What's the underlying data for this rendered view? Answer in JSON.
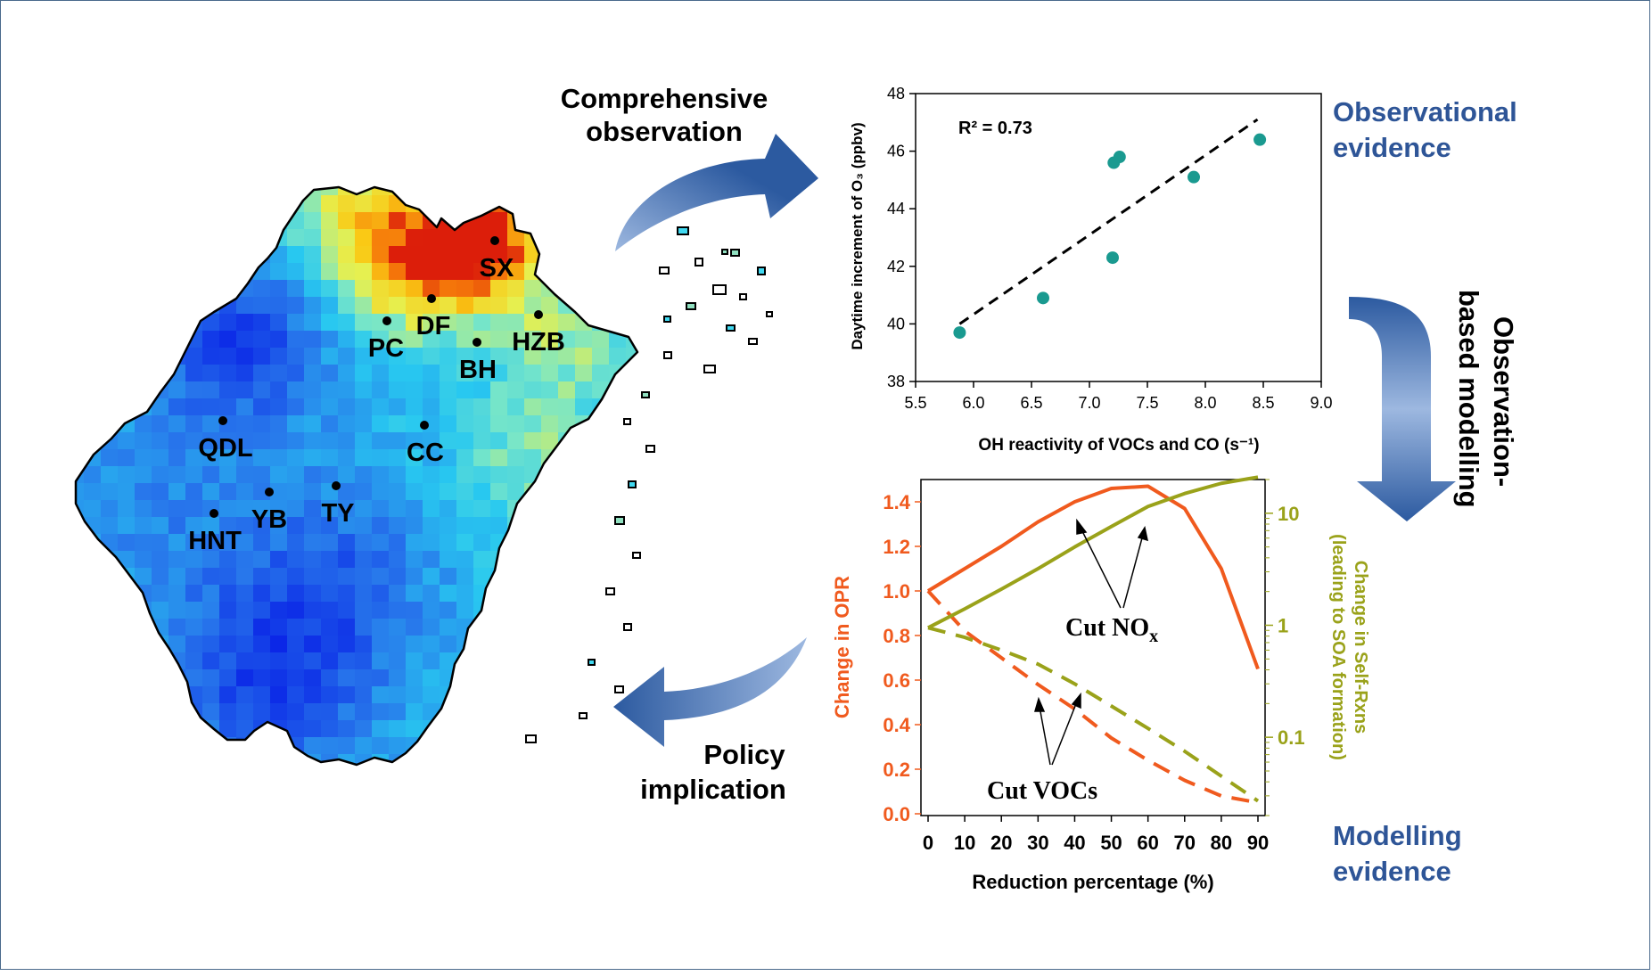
{
  "labels": {
    "comprehensive_line1": "Comprehensive",
    "comprehensive_line2": "observation",
    "observational_line1": "Observational",
    "observational_line2": "evidence",
    "obm_line1": "Observation-",
    "obm_line2": "based modelling",
    "policy_line1": "Policy",
    "policy_line2": "implication",
    "modelling_line1": "Modelling",
    "modelling_line2": "evidence"
  },
  "colors": {
    "blue_text": "#2e5597",
    "arrow_dark": "#2c5aa0",
    "arrow_light": "#9db8e0",
    "teal": "#1a9a90",
    "orange": "#f05a1e",
    "olive": "#9aa21a"
  },
  "map": {
    "sites": [
      {
        "code": "SX"
      },
      {
        "code": "DF"
      },
      {
        "code": "PC"
      },
      {
        "code": "HZB"
      },
      {
        "code": "BH"
      },
      {
        "code": "QDL"
      },
      {
        "code": "CC"
      },
      {
        "code": "TY"
      },
      {
        "code": "YB"
      },
      {
        "code": "HNT"
      }
    ]
  },
  "chart_data": [
    {
      "type": "scatter",
      "xlabel": "OH reactivity of VOCs and CO (s⁻¹)",
      "ylabel": "Daytime increment of O₃ (ppbv)",
      "annotation": "R² = 0.73",
      "xlim": [
        5.5,
        9.0
      ],
      "ylim": [
        38,
        48
      ],
      "xticks": [
        "5.5",
        "6.0",
        "6.5",
        "7.0",
        "7.5",
        "8.0",
        "8.5",
        "9.0"
      ],
      "yticks": [
        "38",
        "40",
        "42",
        "44",
        "46",
        "48"
      ],
      "points": [
        {
          "x": 5.88,
          "y": 39.7
        },
        {
          "x": 6.6,
          "y": 40.9
        },
        {
          "x": 7.2,
          "y": 42.3
        },
        {
          "x": 7.21,
          "y": 45.6
        },
        {
          "x": 7.26,
          "y": 45.8
        },
        {
          "x": 7.9,
          "y": 45.1
        },
        {
          "x": 8.47,
          "y": 46.4
        }
      ],
      "fit_line": [
        {
          "x": 5.88,
          "y": 40.0
        },
        {
          "x": 8.45,
          "y": 47.1
        }
      ]
    },
    {
      "type": "line",
      "xlabel": "Reduction percentage (%)",
      "ylabel_left": "Change in OPR",
      "ylabel_right": "Change in Self-Rxns (leading to SOA formation)",
      "ylabel_right_line1": "Change in Self-Rxns",
      "ylabel_right_line2": "(leading to SOA formation)",
      "xlim": [
        0,
        90
      ],
      "ylim_left": [
        0,
        1.5
      ],
      "ylim_right_log": [
        0.02,
        20
      ],
      "xticks": [
        "0",
        "10",
        "20",
        "30",
        "40",
        "50",
        "60",
        "70",
        "80",
        "90"
      ],
      "yticks_left": [
        "0.0",
        "0.2",
        "0.4",
        "0.6",
        "0.8",
        "1.0",
        "1.2",
        "1.4"
      ],
      "yticks_right": [
        "0.1",
        "1",
        "10"
      ],
      "annotation_nox": "Cut NO",
      "annotation_nox_sub": "x",
      "annotation_vocs": "Cut VOCs",
      "series": [
        {
          "axis": "left",
          "style": "solid",
          "color": "#f05a1e",
          "points": [
            [
              0,
              1.0
            ],
            [
              10,
              1.1
            ],
            [
              20,
              1.2
            ],
            [
              30,
              1.31
            ],
            [
              40,
              1.4
            ],
            [
              50,
              1.46
            ],
            [
              60,
              1.47
            ],
            [
              70,
              1.37
            ],
            [
              80,
              1.1
            ],
            [
              90,
              0.65
            ]
          ]
        },
        {
          "axis": "left",
          "style": "dashed",
          "color": "#f05a1e",
          "points": [
            [
              0,
              1.0
            ],
            [
              10,
              0.82
            ],
            [
              20,
              0.7
            ],
            [
              30,
              0.58
            ],
            [
              40,
              0.47
            ],
            [
              50,
              0.34
            ],
            [
              60,
              0.24
            ],
            [
              70,
              0.15
            ],
            [
              80,
              0.08
            ],
            [
              90,
              0.05
            ]
          ]
        },
        {
          "axis": "right",
          "style": "solid",
          "color": "#9aa21a",
          "points": [
            [
              0,
              0.95
            ],
            [
              10,
              1.4
            ],
            [
              20,
              2.1
            ],
            [
              30,
              3.2
            ],
            [
              40,
              5.0
            ],
            [
              50,
              7.6
            ],
            [
              60,
              11.5
            ],
            [
              70,
              15
            ],
            [
              80,
              18.5
            ],
            [
              90,
              21
            ]
          ]
        },
        {
          "axis": "right",
          "style": "dashed",
          "color": "#9aa21a",
          "points": [
            [
              0,
              0.95
            ],
            [
              10,
              0.78
            ],
            [
              20,
              0.6
            ],
            [
              30,
              0.45
            ],
            [
              40,
              0.3
            ],
            [
              50,
              0.19
            ],
            [
              60,
              0.12
            ],
            [
              70,
              0.075
            ],
            [
              80,
              0.045
            ],
            [
              90,
              0.027
            ]
          ]
        }
      ]
    }
  ]
}
